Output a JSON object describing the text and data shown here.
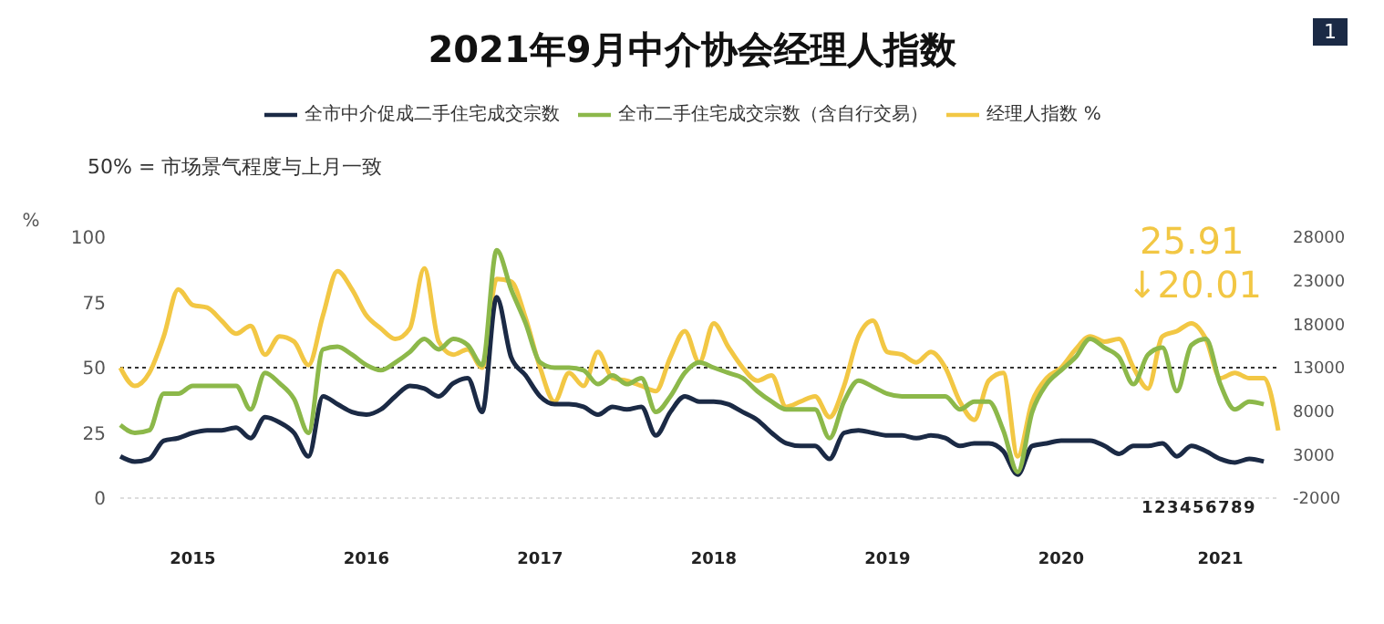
{
  "chart_data": {
    "type": "line",
    "title": "2021年9月中介协会经理人指数",
    "ylabel": "%",
    "categories": [
      null,
      null,
      null,
      null,
      null,
      "2015",
      null,
      null,
      null,
      null,
      null,
      null,
      null,
      null,
      null,
      null,
      null,
      "2016",
      null,
      null,
      null,
      null,
      null,
      null,
      null,
      null,
      null,
      null,
      null,
      "2017",
      null,
      null,
      null,
      null,
      null,
      null,
      null,
      null,
      null,
      null,
      null,
      "2018",
      null,
      null,
      null,
      null,
      null,
      null,
      null,
      null,
      null,
      null,
      null,
      "2019",
      null,
      null,
      null,
      null,
      null,
      null,
      null,
      null,
      null,
      null,
      null,
      "2020",
      null,
      null,
      null,
      null,
      null,
      null,
      null,
      null,
      null,
      null,
      "2021",
      null,
      null,
      null,
      null
    ],
    "series": [
      {
        "name": "经理人指数 %",
        "color": "#f2c744",
        "values": [
          50,
          43,
          48,
          62,
          80,
          74,
          73,
          68,
          63,
          66,
          55,
          62,
          60,
          51,
          70,
          87,
          80,
          70,
          65,
          61,
          65,
          88,
          60,
          55,
          57,
          50,
          84,
          83,
          69,
          50,
          37,
          48,
          43,
          56,
          46,
          45,
          43,
          41,
          54,
          64,
          52,
          67,
          58,
          50,
          45,
          47,
          35,
          37,
          39,
          31,
          43,
          62,
          68,
          56,
          55,
          52,
          56,
          50,
          37,
          30,
          45,
          48,
          16,
          37,
          46,
          50,
          57,
          62,
          60,
          61,
          50,
          42,
          62,
          64,
          67,
          61,
          46,
          48,
          46,
          46,
          25.91
        ]
      },
      {
        "name": "全市中介促成二手住宅成交宗数",
        "color": "#1b2a45",
        "axis": "y2",
        "values": [
          2800,
          2200,
          2500,
          4600,
          4900,
          5500,
          5800,
          5800,
          6100,
          4900,
          7300,
          6700,
          5500,
          2800,
          9700,
          8800,
          7900,
          7600,
          8200,
          9700,
          10900,
          10600,
          9700,
          11200,
          11800,
          7900,
          21100,
          14200,
          12100,
          9700,
          8800,
          8800,
          8500,
          7600,
          8500,
          8200,
          8500,
          5200,
          7900,
          9700,
          9100,
          9100,
          8800,
          7900,
          7000,
          5500,
          4300,
          4000,
          4000,
          2500,
          5500,
          5800,
          5500,
          5200,
          5200,
          4900,
          5200,
          4900,
          4000,
          4300,
          4300,
          3400,
          700,
          4000,
          4300,
          4600,
          4600,
          4600,
          4000,
          3100,
          4000,
          4000,
          4300,
          2800,
          4000,
          3400,
          2500,
          2100,
          2500,
          2200,
          null
        ]
      },
      {
        "name": "全市二手住宅成交宗数（含自行交易）",
        "color": "#8cb84a",
        "axis": "y2",
        "values": [
          6400,
          5500,
          5800,
          10000,
          10000,
          10900,
          10900,
          10900,
          10900,
          8200,
          12400,
          11200,
          9400,
          5500,
          15100,
          15400,
          14500,
          13300,
          12700,
          13600,
          14800,
          16300,
          15100,
          16300,
          15600,
          13300,
          26500,
          22000,
          18100,
          13600,
          13000,
          13000,
          12700,
          11100,
          12100,
          11100,
          11800,
          7900,
          9700,
          12400,
          13600,
          13000,
          12400,
          11800,
          10300,
          9100,
          8200,
          8200,
          8200,
          4900,
          9100,
          11500,
          10800,
          10000,
          9700,
          9700,
          9700,
          9700,
          8200,
          9100,
          9100,
          5800,
          1000,
          7900,
          11100,
          12700,
          14200,
          16300,
          15300,
          14200,
          11100,
          14500,
          15300,
          10300,
          15600,
          16300,
          11100,
          8200,
          9100,
          8800,
          null
        ]
      }
    ],
    "ylim": [
      0,
      100
    ],
    "yticks": [
      0,
      25,
      50,
      75,
      100
    ],
    "y2lim": [
      -2000,
      28000
    ],
    "y2ticks": [
      -2000,
      3000,
      8000,
      13000,
      18000,
      23000,
      28000
    ],
    "ref_lines": [
      {
        "axis": "y",
        "value": 50,
        "line_style": "dotted",
        "color": "#333333"
      }
    ],
    "annotations": [
      "50% = 市场景气程度与上月一致",
      "25.91",
      "↓20.01",
      "1",
      "1 2 3 4 5 6 7 8 9"
    ],
    "legend": "top",
    "marker": "none",
    "line_style": "solid"
  }
}
